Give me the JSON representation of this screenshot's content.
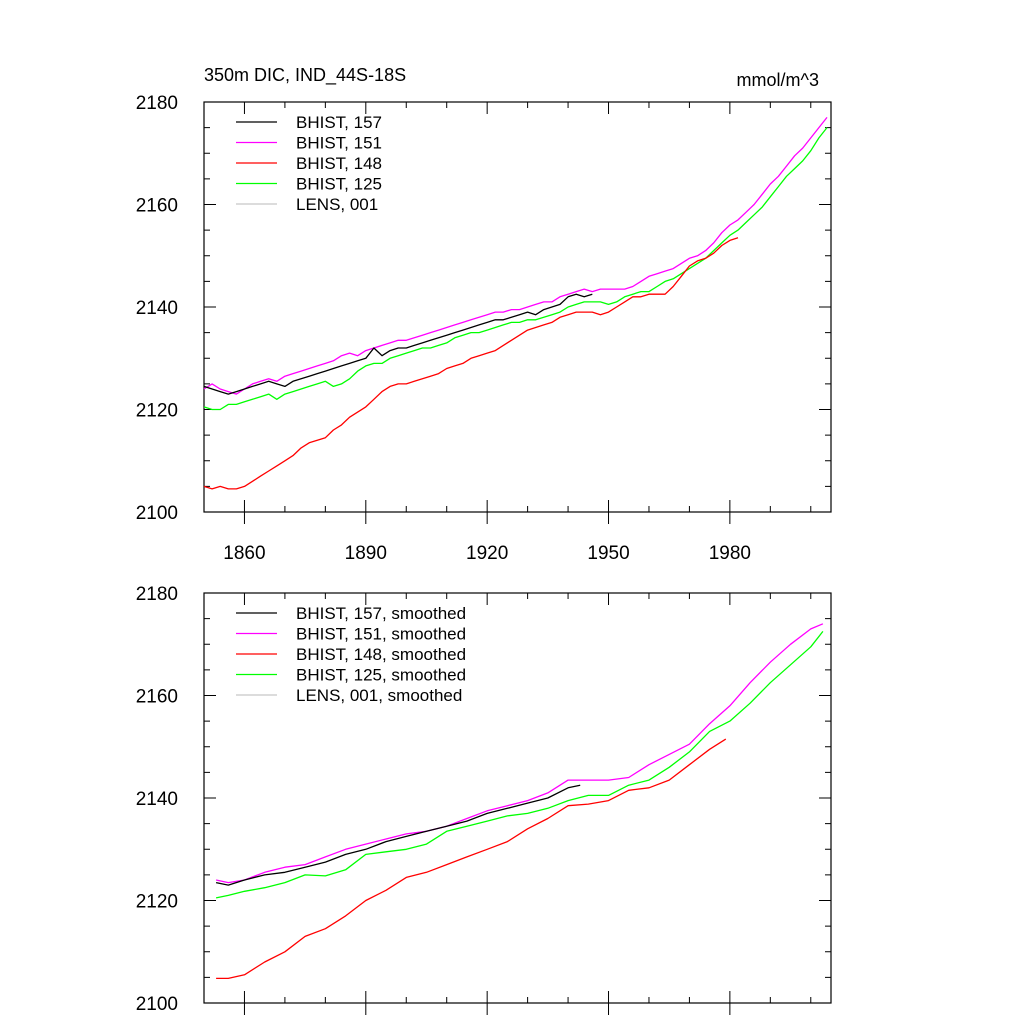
{
  "figure": {
    "title_left": "350m DIC, IND_44S-18S",
    "title_right": "mmol/m^3"
  },
  "chart_data": [
    {
      "type": "line",
      "panel": "top",
      "title": "350m DIC, IND_44S-18S",
      "units": "mmol/m^3",
      "xlim": [
        1850,
        2005
      ],
      "ylim": [
        2100,
        2180
      ],
      "xticks": [
        1860,
        1890,
        1920,
        1950,
        1980
      ],
      "xtick_labels": [
        "1860",
        "1890",
        "1920",
        "1950",
        "1980"
      ],
      "yticks": [
        2100,
        2120,
        2140,
        2160,
        2180
      ],
      "ytick_labels": [
        "2100",
        "2120",
        "2140",
        "2160",
        "2180"
      ],
      "legend": "top-left",
      "series": [
        {
          "name": "BHIST, 157",
          "color": "#000000",
          "x": [
            1850,
            1852,
            1854,
            1856,
            1858,
            1860,
            1862,
            1864,
            1866,
            1868,
            1870,
            1872,
            1874,
            1876,
            1878,
            1880,
            1882,
            1884,
            1886,
            1888,
            1890,
            1892,
            1894,
            1896,
            1898,
            1900,
            1902,
            1904,
            1906,
            1908,
            1910,
            1912,
            1914,
            1916,
            1918,
            1920,
            1922,
            1924,
            1926,
            1928,
            1930,
            1932,
            1934,
            1936,
            1938,
            1940,
            1942,
            1944,
            1946
          ],
          "y": [
            2124.5,
            2124,
            2123.5,
            2123,
            2123.5,
            2124,
            2124.5,
            2125,
            2125.5,
            2125,
            2124.5,
            2125.5,
            2126,
            2126.5,
            2127,
            2127.5,
            2128,
            2128.5,
            2129,
            2129.5,
            2130,
            2132,
            2130.5,
            2131.5,
            2132,
            2132,
            2132.5,
            2133,
            2133.5,
            2134,
            2134.5,
            2135,
            2135.5,
            2136,
            2136.5,
            2137,
            2137.5,
            2137.5,
            2138,
            2138.5,
            2139,
            2138.5,
            2139.5,
            2140,
            2140.5,
            2142,
            2142.5,
            2142,
            2142.5
          ]
        },
        {
          "name": "BHIST, 151",
          "color": "#ff00ff",
          "x": [
            1850,
            1852,
            1854,
            1856,
            1858,
            1860,
            1862,
            1864,
            1866,
            1868,
            1870,
            1872,
            1874,
            1876,
            1878,
            1880,
            1882,
            1884,
            1886,
            1888,
            1890,
            1892,
            1894,
            1896,
            1898,
            1900,
            1902,
            1904,
            1906,
            1908,
            1910,
            1912,
            1914,
            1916,
            1918,
            1920,
            1922,
            1924,
            1926,
            1928,
            1930,
            1932,
            1934,
            1936,
            1938,
            1940,
            1942,
            1944,
            1946,
            1948,
            1950,
            1952,
            1954,
            1956,
            1958,
            1960,
            1962,
            1964,
            1966,
            1968,
            1970,
            1972,
            1974,
            1976,
            1978,
            1980,
            1982,
            1984,
            1986,
            1988,
            1990,
            1992,
            1994,
            1996,
            1998,
            2000,
            2002,
            2004
          ],
          "y": [
            2124,
            2125,
            2124,
            2123.5,
            2123,
            2124,
            2125,
            2125.5,
            2126,
            2125.5,
            2126.5,
            2127,
            2127.5,
            2128,
            2128.5,
            2129,
            2129.5,
            2130.5,
            2131,
            2130.5,
            2131.5,
            2132,
            2132.5,
            2133,
            2133.5,
            2133.5,
            2134,
            2134.5,
            2135,
            2135.5,
            2136,
            2136.5,
            2137,
            2137.5,
            2138,
            2138.5,
            2139,
            2139,
            2139.5,
            2139.5,
            2140,
            2140.5,
            2141,
            2141,
            2142,
            2142.5,
            2143,
            2143.5,
            2143,
            2143.5,
            2143.5,
            2143.5,
            2143.5,
            2144,
            2145,
            2146,
            2146.5,
            2147,
            2147.5,
            2148.5,
            2149.5,
            2150,
            2151,
            2152.5,
            2154.5,
            2156,
            2157,
            2158.5,
            2160,
            2162,
            2164,
            2165.5,
            2167.5,
            2169.5,
            2171,
            2173,
            2175,
            2177
          ]
        },
        {
          "name": "BHIST, 148",
          "color": "#ff0000",
          "x": [
            1850,
            1852,
            1854,
            1856,
            1858,
            1860,
            1862,
            1864,
            1866,
            1868,
            1870,
            1872,
            1874,
            1876,
            1878,
            1880,
            1882,
            1884,
            1886,
            1888,
            1890,
            1892,
            1894,
            1896,
            1898,
            1900,
            1902,
            1904,
            1906,
            1908,
            1910,
            1912,
            1914,
            1916,
            1918,
            1920,
            1922,
            1924,
            1926,
            1928,
            1930,
            1932,
            1934,
            1936,
            1938,
            1940,
            1942,
            1944,
            1946,
            1948,
            1950,
            1952,
            1954,
            1956,
            1958,
            1960,
            1962,
            1964,
            1966,
            1968,
            1970,
            1972,
            1974,
            1976,
            1978,
            1980,
            1982
          ],
          "y": [
            2105,
            2104.5,
            2105,
            2104.5,
            2104.5,
            2105,
            2106,
            2107,
            2108,
            2109,
            2110,
            2111,
            2112.5,
            2113.5,
            2114,
            2114.5,
            2116,
            2117,
            2118.5,
            2119.5,
            2120.5,
            2122,
            2123.5,
            2124.5,
            2125,
            2125,
            2125.5,
            2126,
            2126.5,
            2127,
            2128,
            2128.5,
            2129,
            2130,
            2130.5,
            2131,
            2131.5,
            2132.5,
            2133.5,
            2134.5,
            2135.5,
            2136,
            2136.5,
            2137,
            2138,
            2138.5,
            2139,
            2139,
            2139,
            2138.5,
            2139,
            2140,
            2141,
            2142,
            2142,
            2142.5,
            2142.5,
            2142.5,
            2144,
            2146,
            2148,
            2149,
            2149.5,
            2150.5,
            2152,
            2153,
            2153.5
          ]
        },
        {
          "name": "BHIST, 125",
          "color": "#00ff00",
          "x": [
            1850,
            1852,
            1854,
            1856,
            1858,
            1860,
            1862,
            1864,
            1866,
            1868,
            1870,
            1872,
            1874,
            1876,
            1878,
            1880,
            1882,
            1884,
            1886,
            1888,
            1890,
            1892,
            1894,
            1896,
            1898,
            1900,
            1902,
            1904,
            1906,
            1908,
            1910,
            1912,
            1914,
            1916,
            1918,
            1920,
            1922,
            1924,
            1926,
            1928,
            1930,
            1932,
            1934,
            1936,
            1938,
            1940,
            1942,
            1944,
            1946,
            1948,
            1950,
            1952,
            1954,
            1956,
            1958,
            1960,
            1962,
            1964,
            1966,
            1968,
            1970,
            1972,
            1974,
            1976,
            1978,
            1980,
            1982,
            1984,
            1986,
            1988,
            1990,
            1992,
            1994,
            1996,
            1998,
            2000,
            2002,
            2004
          ],
          "y": [
            2120.5,
            2120,
            2120,
            2121,
            2121,
            2121.5,
            2122,
            2122.5,
            2123,
            2122,
            2123,
            2123.5,
            2124,
            2124.5,
            2125,
            2125.5,
            2124.5,
            2125,
            2126,
            2127.5,
            2128.5,
            2129,
            2129,
            2130,
            2130.5,
            2131,
            2131.5,
            2132,
            2132,
            2132.5,
            2133,
            2134,
            2134.5,
            2135,
            2135,
            2135.5,
            2136,
            2136.5,
            2137,
            2137,
            2137.5,
            2137.5,
            2138,
            2138.5,
            2139,
            2140,
            2140.5,
            2141,
            2141,
            2141,
            2140.5,
            2141,
            2142,
            2142.5,
            2143,
            2143,
            2144,
            2145,
            2145.5,
            2146.5,
            2147.5,
            2148.5,
            2149.5,
            2151,
            2152.5,
            2154,
            2155,
            2156.5,
            2158,
            2159.5,
            2161.5,
            2163.5,
            2165.5,
            2167,
            2168.5,
            2170.5,
            2173,
            2175
          ]
        },
        {
          "name": "LENS, 001",
          "color": "#c8c8c8",
          "x": [],
          "y": []
        }
      ]
    },
    {
      "type": "line",
      "panel": "bottom",
      "xlim": [
        1850,
        2005
      ],
      "ylim": [
        2100,
        2180
      ],
      "xticks": [
        1860,
        1890,
        1920,
        1950,
        1980
      ],
      "yticks": [
        2100,
        2120,
        2140,
        2160,
        2180
      ],
      "ytick_labels": [
        "2100",
        "2120",
        "2140",
        "2160",
        "2180"
      ],
      "legend": "top-left",
      "series": [
        {
          "name": "BHIST, 157, smoothed",
          "color": "#000000",
          "x": [
            1853,
            1856,
            1860,
            1865,
            1870,
            1875,
            1880,
            1885,
            1890,
            1895,
            1900,
            1905,
            1910,
            1915,
            1920,
            1925,
            1930,
            1935,
            1940,
            1943
          ],
          "y": [
            2123.5,
            2123,
            2124,
            2125,
            2125.5,
            2126.5,
            2127.5,
            2129,
            2130,
            2131.5,
            2132.5,
            2133.5,
            2134.5,
            2135.5,
            2137,
            2138,
            2139,
            2140,
            2142,
            2142.5
          ]
        },
        {
          "name": "BHIST, 151, smoothed",
          "color": "#ff00ff",
          "x": [
            1853,
            1856,
            1860,
            1865,
            1870,
            1875,
            1880,
            1885,
            1890,
            1895,
            1900,
            1905,
            1910,
            1915,
            1920,
            1925,
            1930,
            1935,
            1940,
            1945,
            1950,
            1955,
            1960,
            1965,
            1970,
            1975,
            1980,
            1985,
            1990,
            1995,
            2000,
            2003
          ],
          "y": [
            2124,
            2123.5,
            2124,
            2125.5,
            2126.5,
            2127,
            2128.5,
            2130,
            2131,
            2132,
            2133,
            2133.5,
            2134.5,
            2136,
            2137.5,
            2138.5,
            2139.5,
            2141,
            2143.5,
            2143.5,
            2143.5,
            2144,
            2146.5,
            2148.5,
            2150.5,
            2154.5,
            2158,
            2162.5,
            2166.5,
            2170,
            2173,
            2174
          ]
        },
        {
          "name": "BHIST, 148, smoothed",
          "color": "#ff0000",
          "x": [
            1853,
            1856,
            1860,
            1865,
            1870,
            1875,
            1880,
            1885,
            1890,
            1895,
            1900,
            1905,
            1910,
            1915,
            1920,
            1925,
            1930,
            1935,
            1940,
            1945,
            1950,
            1955,
            1960,
            1965,
            1970,
            1975,
            1979
          ],
          "y": [
            2104.8,
            2104.8,
            2105.5,
            2108,
            2110,
            2113,
            2114.5,
            2117,
            2120,
            2122,
            2124.5,
            2125.5,
            2127,
            2128.5,
            2130,
            2131.5,
            2134,
            2136,
            2138.5,
            2138.8,
            2139.5,
            2141.5,
            2142,
            2143.5,
            2146.5,
            2149.5,
            2151.5
          ]
        },
        {
          "name": "BHIST, 125, smoothed",
          "color": "#00ff00",
          "x": [
            1853,
            1856,
            1860,
            1865,
            1870,
            1875,
            1880,
            1885,
            1890,
            1895,
            1900,
            1905,
            1910,
            1915,
            1920,
            1925,
            1930,
            1935,
            1940,
            1945,
            1950,
            1955,
            1960,
            1965,
            1970,
            1975,
            1980,
            1985,
            1990,
            1995,
            2000,
            2003
          ],
          "y": [
            2120.5,
            2121,
            2121.8,
            2122.5,
            2123.5,
            2125,
            2124.8,
            2126,
            2129,
            2129.5,
            2130,
            2131,
            2133.5,
            2134.5,
            2135.5,
            2136.5,
            2137,
            2138,
            2139.5,
            2140.5,
            2140.5,
            2142.5,
            2143.5,
            2146,
            2149,
            2153,
            2155,
            2158.5,
            2162.5,
            2166,
            2169.5,
            2172.5
          ]
        },
        {
          "name": "LENS, 001, smoothed",
          "color": "#c8c8c8",
          "x": [],
          "y": []
        }
      ]
    }
  ]
}
